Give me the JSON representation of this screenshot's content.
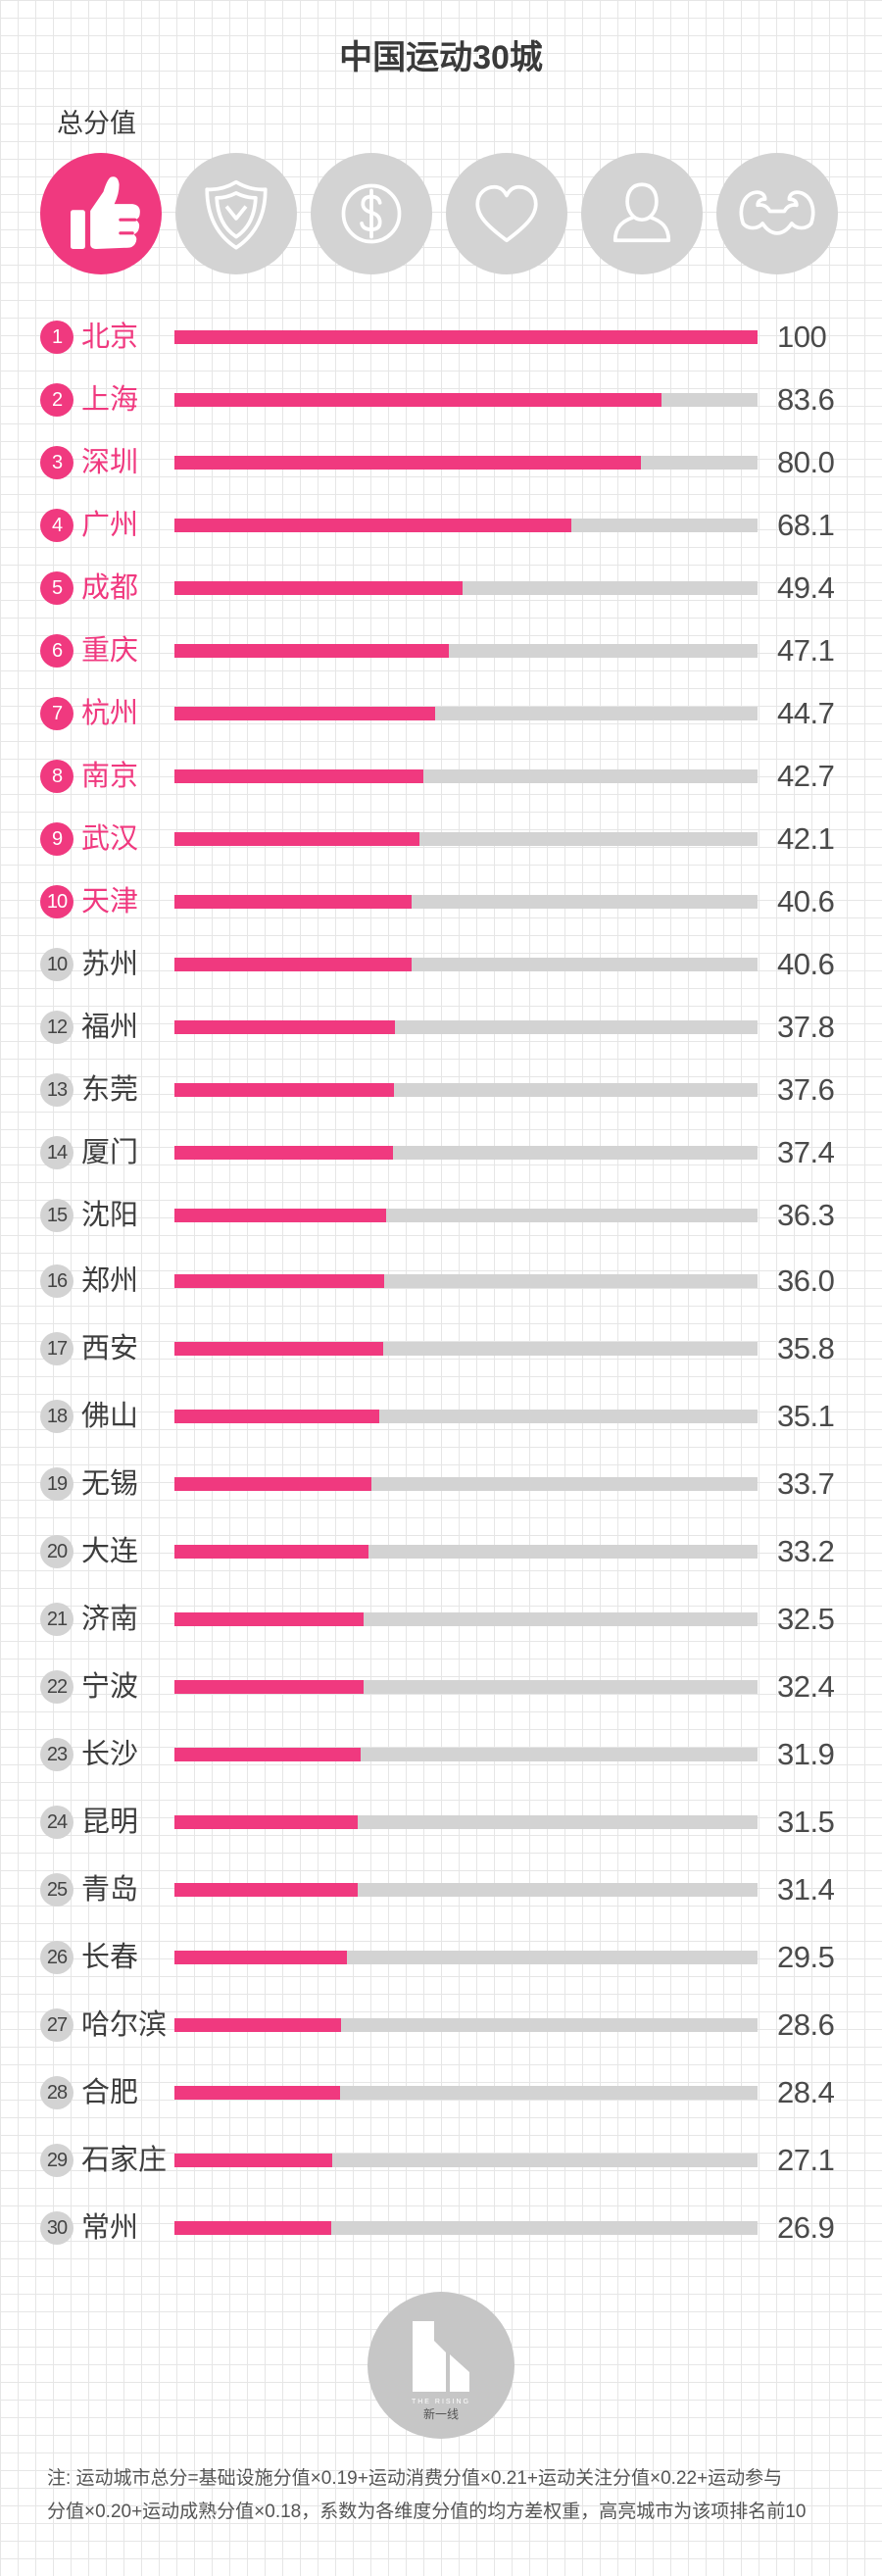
{
  "colors": {
    "accent": "#f0397f",
    "inactive": "#d3d3d3",
    "text": "#3d3d3d",
    "value": "#4a4a4a",
    "grid": "#e6e6e6",
    "logo": "#c6c6c6"
  },
  "category_icons": [
    {
      "icon": "thumbs-up-icon",
      "active": true
    },
    {
      "icon": "shield-icon",
      "active": false
    },
    {
      "icon": "dollar-icon",
      "active": false
    },
    {
      "icon": "heart-icon",
      "active": false
    },
    {
      "icon": "person-icon",
      "active": false
    },
    {
      "icon": "muscle-icon",
      "active": false
    }
  ],
  "chart_data": {
    "type": "bar",
    "orientation": "horizontal",
    "title": "中国运动30城",
    "value_label": "总分值",
    "xlim": [
      0,
      100
    ],
    "grid": true,
    "rows": [
      {
        "rank": "1",
        "city": "北京",
        "value": 100,
        "label": "100",
        "highlight": true
      },
      {
        "rank": "2",
        "city": "上海",
        "value": 83.6,
        "label": "83.6",
        "highlight": true
      },
      {
        "rank": "3",
        "city": "深圳",
        "value": 80.0,
        "label": "80.0",
        "highlight": true
      },
      {
        "rank": "4",
        "city": "广州",
        "value": 68.1,
        "label": "68.1",
        "highlight": true
      },
      {
        "rank": "5",
        "city": "成都",
        "value": 49.4,
        "label": "49.4",
        "highlight": true
      },
      {
        "rank": "6",
        "city": "重庆",
        "value": 47.1,
        "label": "47.1",
        "highlight": true
      },
      {
        "rank": "7",
        "city": "杭州",
        "value": 44.7,
        "label": "44.7",
        "highlight": true
      },
      {
        "rank": "8",
        "city": "南京",
        "value": 42.7,
        "label": "42.7",
        "highlight": true
      },
      {
        "rank": "9",
        "city": "武汉",
        "value": 42.1,
        "label": "42.1",
        "highlight": true
      },
      {
        "rank": "10",
        "city": "天津",
        "value": 40.6,
        "label": "40.6",
        "highlight": true
      },
      {
        "rank": "10",
        "city": "苏州",
        "value": 40.6,
        "label": "40.6",
        "highlight": false
      },
      {
        "rank": "12",
        "city": "福州",
        "value": 37.8,
        "label": "37.8",
        "highlight": false
      },
      {
        "rank": "13",
        "city": "东莞",
        "value": 37.6,
        "label": "37.6",
        "highlight": false
      },
      {
        "rank": "14",
        "city": "厦门",
        "value": 37.4,
        "label": "37.4",
        "highlight": false
      },
      {
        "rank": "15",
        "city": "沈阳",
        "value": 36.3,
        "label": "36.3",
        "highlight": false
      },
      {
        "rank": "16",
        "city": "郑州",
        "value": 36.0,
        "label": "36.0",
        "highlight": false
      },
      {
        "rank": "17",
        "city": "西安",
        "value": 35.8,
        "label": "35.8",
        "highlight": false
      },
      {
        "rank": "18",
        "city": "佛山",
        "value": 35.1,
        "label": "35.1",
        "highlight": false
      },
      {
        "rank": "19",
        "city": "无锡",
        "value": 33.7,
        "label": "33.7",
        "highlight": false
      },
      {
        "rank": "20",
        "city": "大连",
        "value": 33.2,
        "label": "33.2",
        "highlight": false
      },
      {
        "rank": "21",
        "city": "济南",
        "value": 32.5,
        "label": "32.5",
        "highlight": false
      },
      {
        "rank": "22",
        "city": "宁波",
        "value": 32.4,
        "label": "32.4",
        "highlight": false
      },
      {
        "rank": "23",
        "city": "长沙",
        "value": 31.9,
        "label": "31.9",
        "highlight": false
      },
      {
        "rank": "24",
        "city": "昆明",
        "value": 31.5,
        "label": "31.5",
        "highlight": false
      },
      {
        "rank": "25",
        "city": "青岛",
        "value": 31.4,
        "label": "31.4",
        "highlight": false
      },
      {
        "rank": "26",
        "city": "长春",
        "value": 29.5,
        "label": "29.5",
        "highlight": false
      },
      {
        "rank": "27",
        "city": "哈尔滨",
        "value": 28.6,
        "label": "28.6",
        "highlight": false
      },
      {
        "rank": "28",
        "city": "合肥",
        "value": 28.4,
        "label": "28.4",
        "highlight": false
      },
      {
        "rank": "29",
        "city": "石家庄",
        "value": 27.1,
        "label": "27.1",
        "highlight": false
      },
      {
        "rank": "30",
        "city": "常州",
        "value": 26.9,
        "label": "26.9",
        "highlight": false
      }
    ]
  },
  "logo": {
    "tagline": "THE RISING",
    "name": "新一线"
  },
  "footnote": {
    "lines": [
      "注: 运动城市总分=基础设施分值×0.19+运动消费分值×0.21+运动关注分值×0.22+运动参与",
      "分值×0.20+运动成熟分值×0.18，系数为各维度分值的均方差权重，高亮城市为该项排名前10"
    ]
  }
}
